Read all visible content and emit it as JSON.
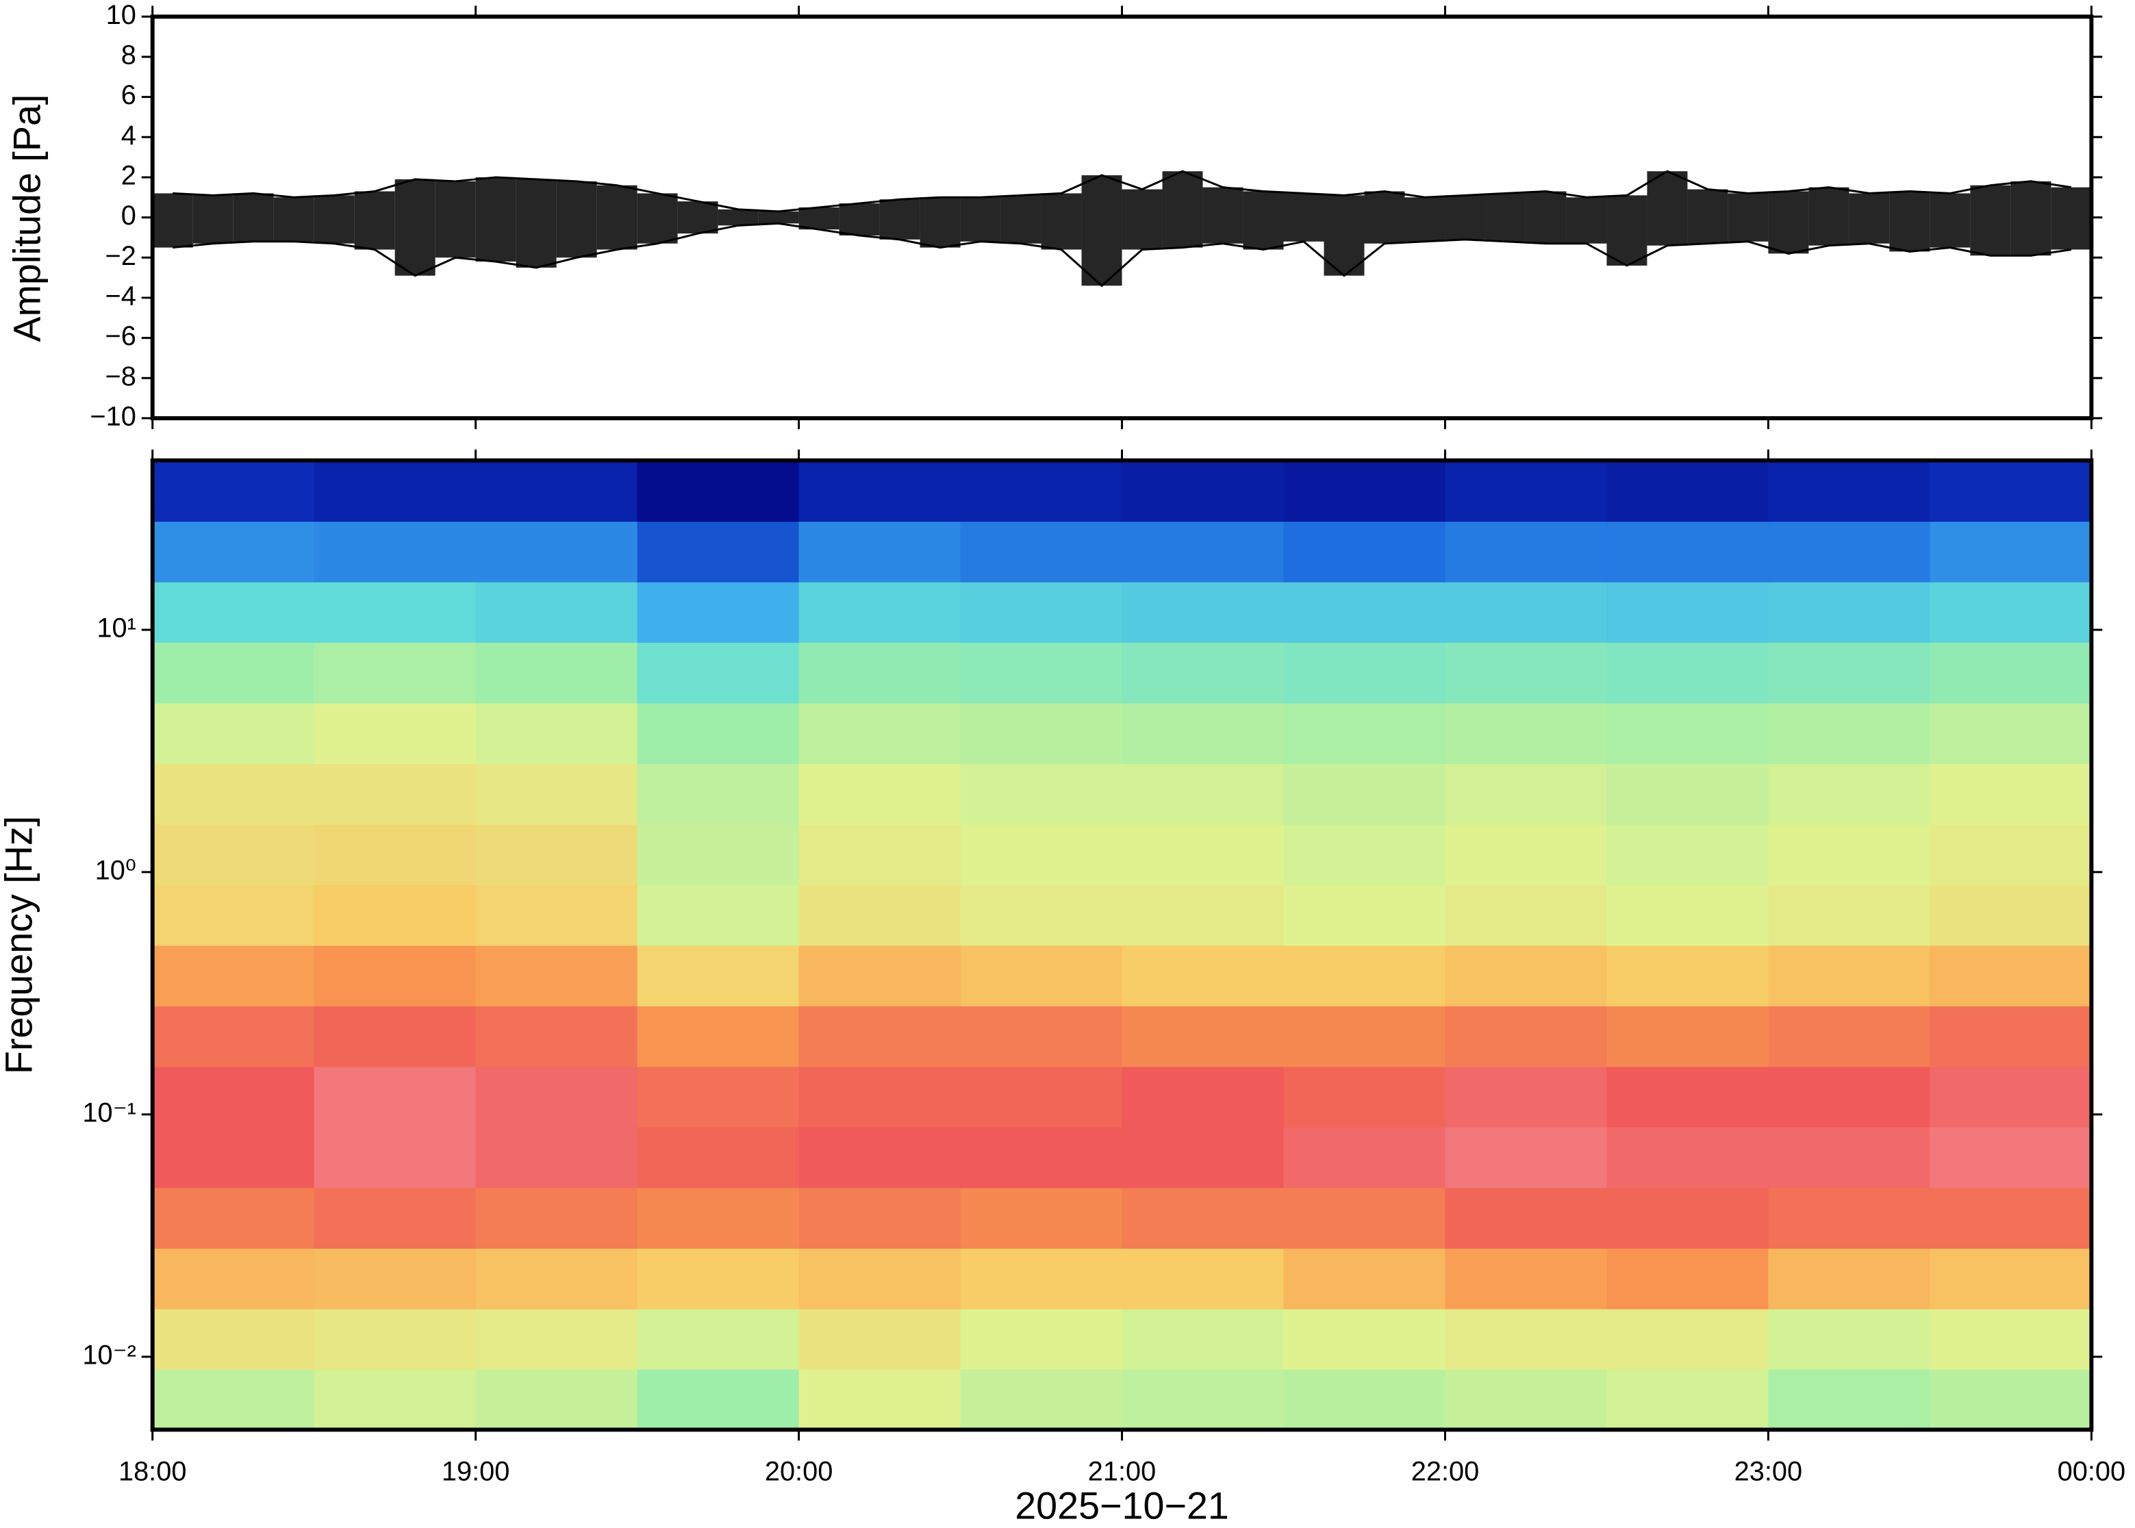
{
  "chart_data": [
    {
      "type": "envelope",
      "ylabel": "Amplitude [Pa]",
      "xlim": [
        18,
        24
      ],
      "ylim": [
        -10,
        10
      ],
      "yticks": [
        {
          "value": -10,
          "label": "−10"
        },
        {
          "value": -8,
          "label": "−8"
        },
        {
          "value": -6,
          "label": "−6"
        },
        {
          "value": -4,
          "label": "−4"
        },
        {
          "value": -2,
          "label": "−2"
        },
        0,
        2,
        4,
        6,
        8,
        10
      ],
      "x": [
        18.0625,
        18.1875,
        18.3125,
        18.4375,
        18.5625,
        18.6875,
        18.8125,
        18.9375,
        19.0625,
        19.1875,
        19.3125,
        19.4375,
        19.5625,
        19.6875,
        19.8125,
        19.9375,
        20.0625,
        20.1875,
        20.3125,
        20.4375,
        20.5625,
        20.6875,
        20.8125,
        20.9375,
        21.0625,
        21.1875,
        21.3125,
        21.4375,
        21.5625,
        21.6875,
        21.8125,
        21.9375,
        22.0625,
        22.1875,
        22.3125,
        22.4375,
        22.5625,
        22.6875,
        22.8125,
        22.9375,
        23.0625,
        23.1875,
        23.3125,
        23.4375,
        23.5625,
        23.6875,
        23.8125,
        23.9375
      ],
      "series": [
        {
          "color": "#000000",
          "values": [
            1.2,
            1.1,
            1.2,
            1.0,
            1.1,
            1.3,
            1.9,
            1.8,
            2.0,
            1.9,
            1.8,
            1.6,
            1.2,
            0.8,
            0.4,
            0.3,
            0.5,
            0.7,
            0.9,
            1.0,
            1.0,
            1.1,
            1.2,
            2.1,
            1.4,
            2.3,
            1.5,
            1.3,
            1.2,
            1.1,
            1.3,
            1.0,
            1.1,
            1.2,
            1.3,
            1.0,
            1.1,
            2.3,
            1.4,
            1.2,
            1.3,
            1.5,
            1.2,
            1.3,
            1.2,
            1.6,
            1.8,
            1.5
          ]
        },
        {
          "color": "#000000",
          "values": [
            -1.5,
            -1.3,
            -1.2,
            -1.2,
            -1.3,
            -1.6,
            -2.9,
            -2.0,
            -2.2,
            -2.5,
            -2.0,
            -1.6,
            -1.3,
            -0.8,
            -0.4,
            -0.3,
            -0.6,
            -0.9,
            -1.1,
            -1.5,
            -1.2,
            -1.3,
            -1.6,
            -3.4,
            -1.6,
            -1.5,
            -1.3,
            -1.6,
            -1.2,
            -2.9,
            -1.3,
            -1.2,
            -1.1,
            -1.2,
            -1.3,
            -1.3,
            -2.4,
            -1.4,
            -1.3,
            -1.2,
            -1.8,
            -1.4,
            -1.3,
            -1.7,
            -1.5,
            -1.9,
            -1.9,
            -1.6
          ]
        }
      ]
    },
    {
      "type": "heatmap",
      "ylabel": "Frequency [Hz]",
      "xlabel": "2025−10−21",
      "xlim": [
        18,
        24
      ],
      "xticks": [
        {
          "value": 18,
          "label": "18:00"
        },
        {
          "value": 19,
          "label": "19:00"
        },
        {
          "value": 20,
          "label": "20:00"
        },
        {
          "value": 21,
          "label": "21:00"
        },
        {
          "value": 22,
          "label": "22:00"
        },
        {
          "value": 23,
          "label": "23:00"
        },
        {
          "value": 24,
          "label": "00:00"
        }
      ],
      "ylim": [
        0.005,
        50
      ],
      "log_y": true,
      "yticks": [
        {
          "value": 0.01,
          "label": "10⁻²"
        },
        {
          "value": 0.1,
          "label": "10⁻¹"
        },
        {
          "value": 1,
          "label": "10⁰"
        },
        {
          "value": 10,
          "label": "10¹"
        }
      ],
      "xbins": [
        18,
        18.5,
        19,
        19.5,
        20,
        20.5,
        21,
        21.5,
        22,
        22.5,
        23,
        23.5,
        24
      ],
      "ybins": [
        0.005,
        0.0089,
        0.0158,
        0.0281,
        0.05,
        0.089,
        0.158,
        0.281,
        0.5,
        0.89,
        1.58,
        2.81,
        5,
        8.9,
        15.8,
        28.1,
        50
      ],
      "zlim": [
        0,
        1
      ],
      "colormap": [
        "#00007a",
        "#0c2cb8",
        "#1f6ee0",
        "#3fb0ec",
        "#62dcd8",
        "#9eeeaa",
        "#e0f290",
        "#f8cc66",
        "#f89450",
        "#f05a5a",
        "#f8a4ac"
      ],
      "z": [
        [
          0.55,
          0.58,
          0.56,
          0.5,
          0.6,
          0.56,
          0.55,
          0.54,
          0.56,
          0.58,
          0.52,
          0.54
        ],
        [
          0.64,
          0.63,
          0.62,
          0.58,
          0.64,
          0.6,
          0.58,
          0.6,
          0.62,
          0.62,
          0.58,
          0.6
        ],
        [
          0.74,
          0.73,
          0.72,
          0.7,
          0.72,
          0.7,
          0.7,
          0.74,
          0.78,
          0.8,
          0.74,
          0.72
        ],
        [
          0.84,
          0.86,
          0.84,
          0.82,
          0.84,
          0.82,
          0.84,
          0.84,
          0.88,
          0.88,
          0.86,
          0.86
        ],
        [
          0.9,
          0.94,
          0.92,
          0.88,
          0.9,
          0.9,
          0.9,
          0.92,
          0.94,
          0.92,
          0.92,
          0.94
        ],
        [
          0.9,
          0.94,
          0.92,
          0.86,
          0.88,
          0.88,
          0.9,
          0.88,
          0.92,
          0.9,
          0.9,
          0.92
        ],
        [
          0.86,
          0.88,
          0.86,
          0.8,
          0.84,
          0.84,
          0.82,
          0.82,
          0.84,
          0.82,
          0.84,
          0.86
        ],
        [
          0.78,
          0.8,
          0.78,
          0.68,
          0.74,
          0.72,
          0.7,
          0.7,
          0.72,
          0.7,
          0.72,
          0.74
        ],
        [
          0.68,
          0.7,
          0.68,
          0.58,
          0.64,
          0.62,
          0.62,
          0.6,
          0.62,
          0.6,
          0.62,
          0.64
        ],
        [
          0.66,
          0.67,
          0.66,
          0.56,
          0.62,
          0.6,
          0.6,
          0.58,
          0.6,
          0.58,
          0.6,
          0.62
        ],
        [
          0.64,
          0.64,
          0.63,
          0.55,
          0.6,
          0.58,
          0.58,
          0.56,
          0.58,
          0.56,
          0.58,
          0.6
        ],
        [
          0.58,
          0.6,
          0.58,
          0.5,
          0.55,
          0.54,
          0.53,
          0.52,
          0.53,
          0.52,
          0.53,
          0.55
        ],
        [
          0.5,
          0.52,
          0.5,
          0.42,
          0.48,
          0.47,
          0.46,
          0.45,
          0.46,
          0.45,
          0.46,
          0.48
        ],
        [
          0.4,
          0.4,
          0.38,
          0.3,
          0.38,
          0.37,
          0.36,
          0.36,
          0.36,
          0.35,
          0.36,
          0.38
        ],
        [
          0.25,
          0.24,
          0.24,
          0.16,
          0.24,
          0.22,
          0.22,
          0.2,
          0.22,
          0.22,
          0.22,
          0.25
        ],
        [
          0.1,
          0.08,
          0.08,
          0.03,
          0.08,
          0.08,
          0.07,
          0.06,
          0.08,
          0.07,
          0.08,
          0.1
        ]
      ]
    }
  ]
}
